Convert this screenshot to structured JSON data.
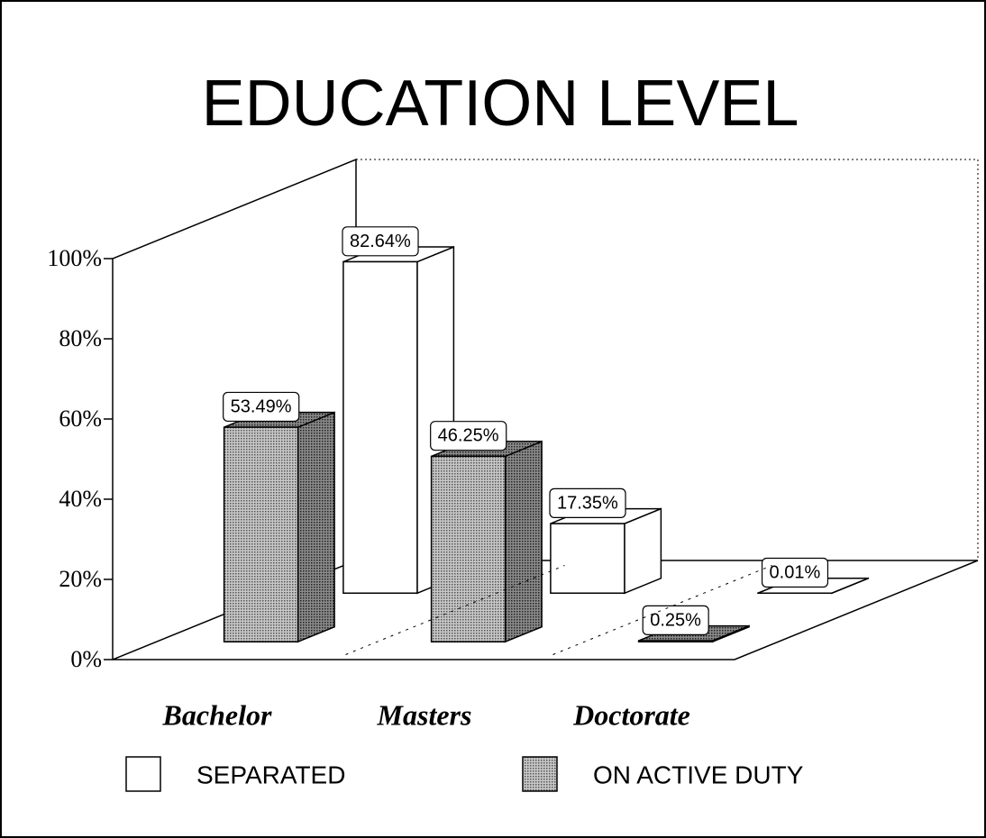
{
  "chart_data": {
    "type": "bar3d",
    "title": "EDUCATION LEVEL",
    "categories": [
      "Bachelor",
      "Masters",
      "Doctorate"
    ],
    "series": [
      {
        "name": "SEPARATED",
        "color": "#ffffff",
        "values": [
          82.64,
          17.35,
          0.01
        ],
        "value_labels": [
          "82.64%",
          "17.35%",
          "0.01%"
        ]
      },
      {
        "name": "ON ACTIVE DUTY",
        "color": "#9a9a9a",
        "values": [
          53.49,
          46.25,
          0.25
        ],
        "value_labels": [
          "53.49%",
          "46.25%",
          "0.25%"
        ]
      }
    ],
    "ylim": [
      0,
      100
    ],
    "yticks": [
      {
        "value": 0,
        "label": "0%"
      },
      {
        "value": 20,
        "label": "20%"
      },
      {
        "value": 40,
        "label": "40%"
      },
      {
        "value": 60,
        "label": "60%"
      },
      {
        "value": 80,
        "label": "80%"
      },
      {
        "value": 100,
        "label": "100%"
      }
    ]
  }
}
